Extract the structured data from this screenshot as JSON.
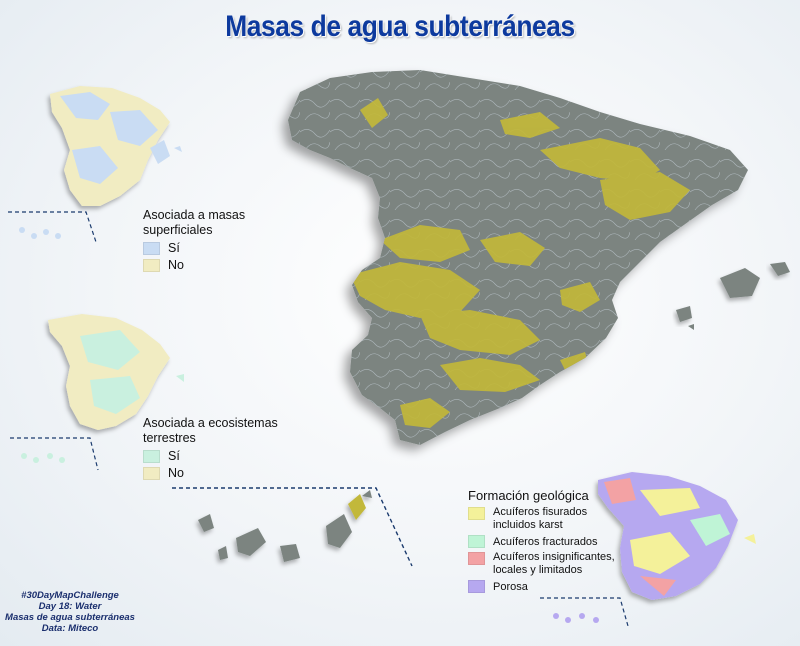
{
  "title": "Masas de agua subterráneas",
  "colors": {
    "title": "#0d3a9e",
    "relief": "#7b8480",
    "aquifer": "#c2b83a",
    "asociada_si": "#c9dcf3",
    "asociada_no": "#f1ecc2",
    "eco_si": "#c9f0df",
    "eco_no": "#f1ecc2",
    "fisurados": "#f4f19a",
    "fracturados": "#bff4d6",
    "insignificantes": "#f3a2a4",
    "porosa": "#b6a8f0"
  },
  "legend_superficiales": {
    "title_line1": "Asociada a masas",
    "title_line2": "superficiales",
    "items": [
      {
        "label": "Sí",
        "color": "#c9dcf3"
      },
      {
        "label": "No",
        "color": "#f1ecc2"
      }
    ]
  },
  "legend_ecosistemas": {
    "title_line1": "Asociada a ecosistemas",
    "title_line2": "terrestres",
    "items": [
      {
        "label": "Sí",
        "color": "#c9f0df"
      },
      {
        "label": "No",
        "color": "#f1ecc2"
      }
    ]
  },
  "legend_geologica": {
    "title": "Formación geológica",
    "items": [
      {
        "line1": "Acuíferos fisurados",
        "line2": "incluidos karst",
        "color": "#f4f19a"
      },
      {
        "line1": "Acuíferos fracturados",
        "line2": "",
        "color": "#bff4d6"
      },
      {
        "line1": "Acuíferos insignificantes,",
        "line2": "locales y limitados",
        "color": "#f3a2a4"
      },
      {
        "line1": "Porosa",
        "line2": "",
        "color": "#b6a8f0"
      }
    ]
  },
  "credits": {
    "line1": "#30DayMapChallenge",
    "line2": "Day 18: Water",
    "line3": "Masas de agua subterráneas",
    "line4": "Data: Miteco"
  }
}
